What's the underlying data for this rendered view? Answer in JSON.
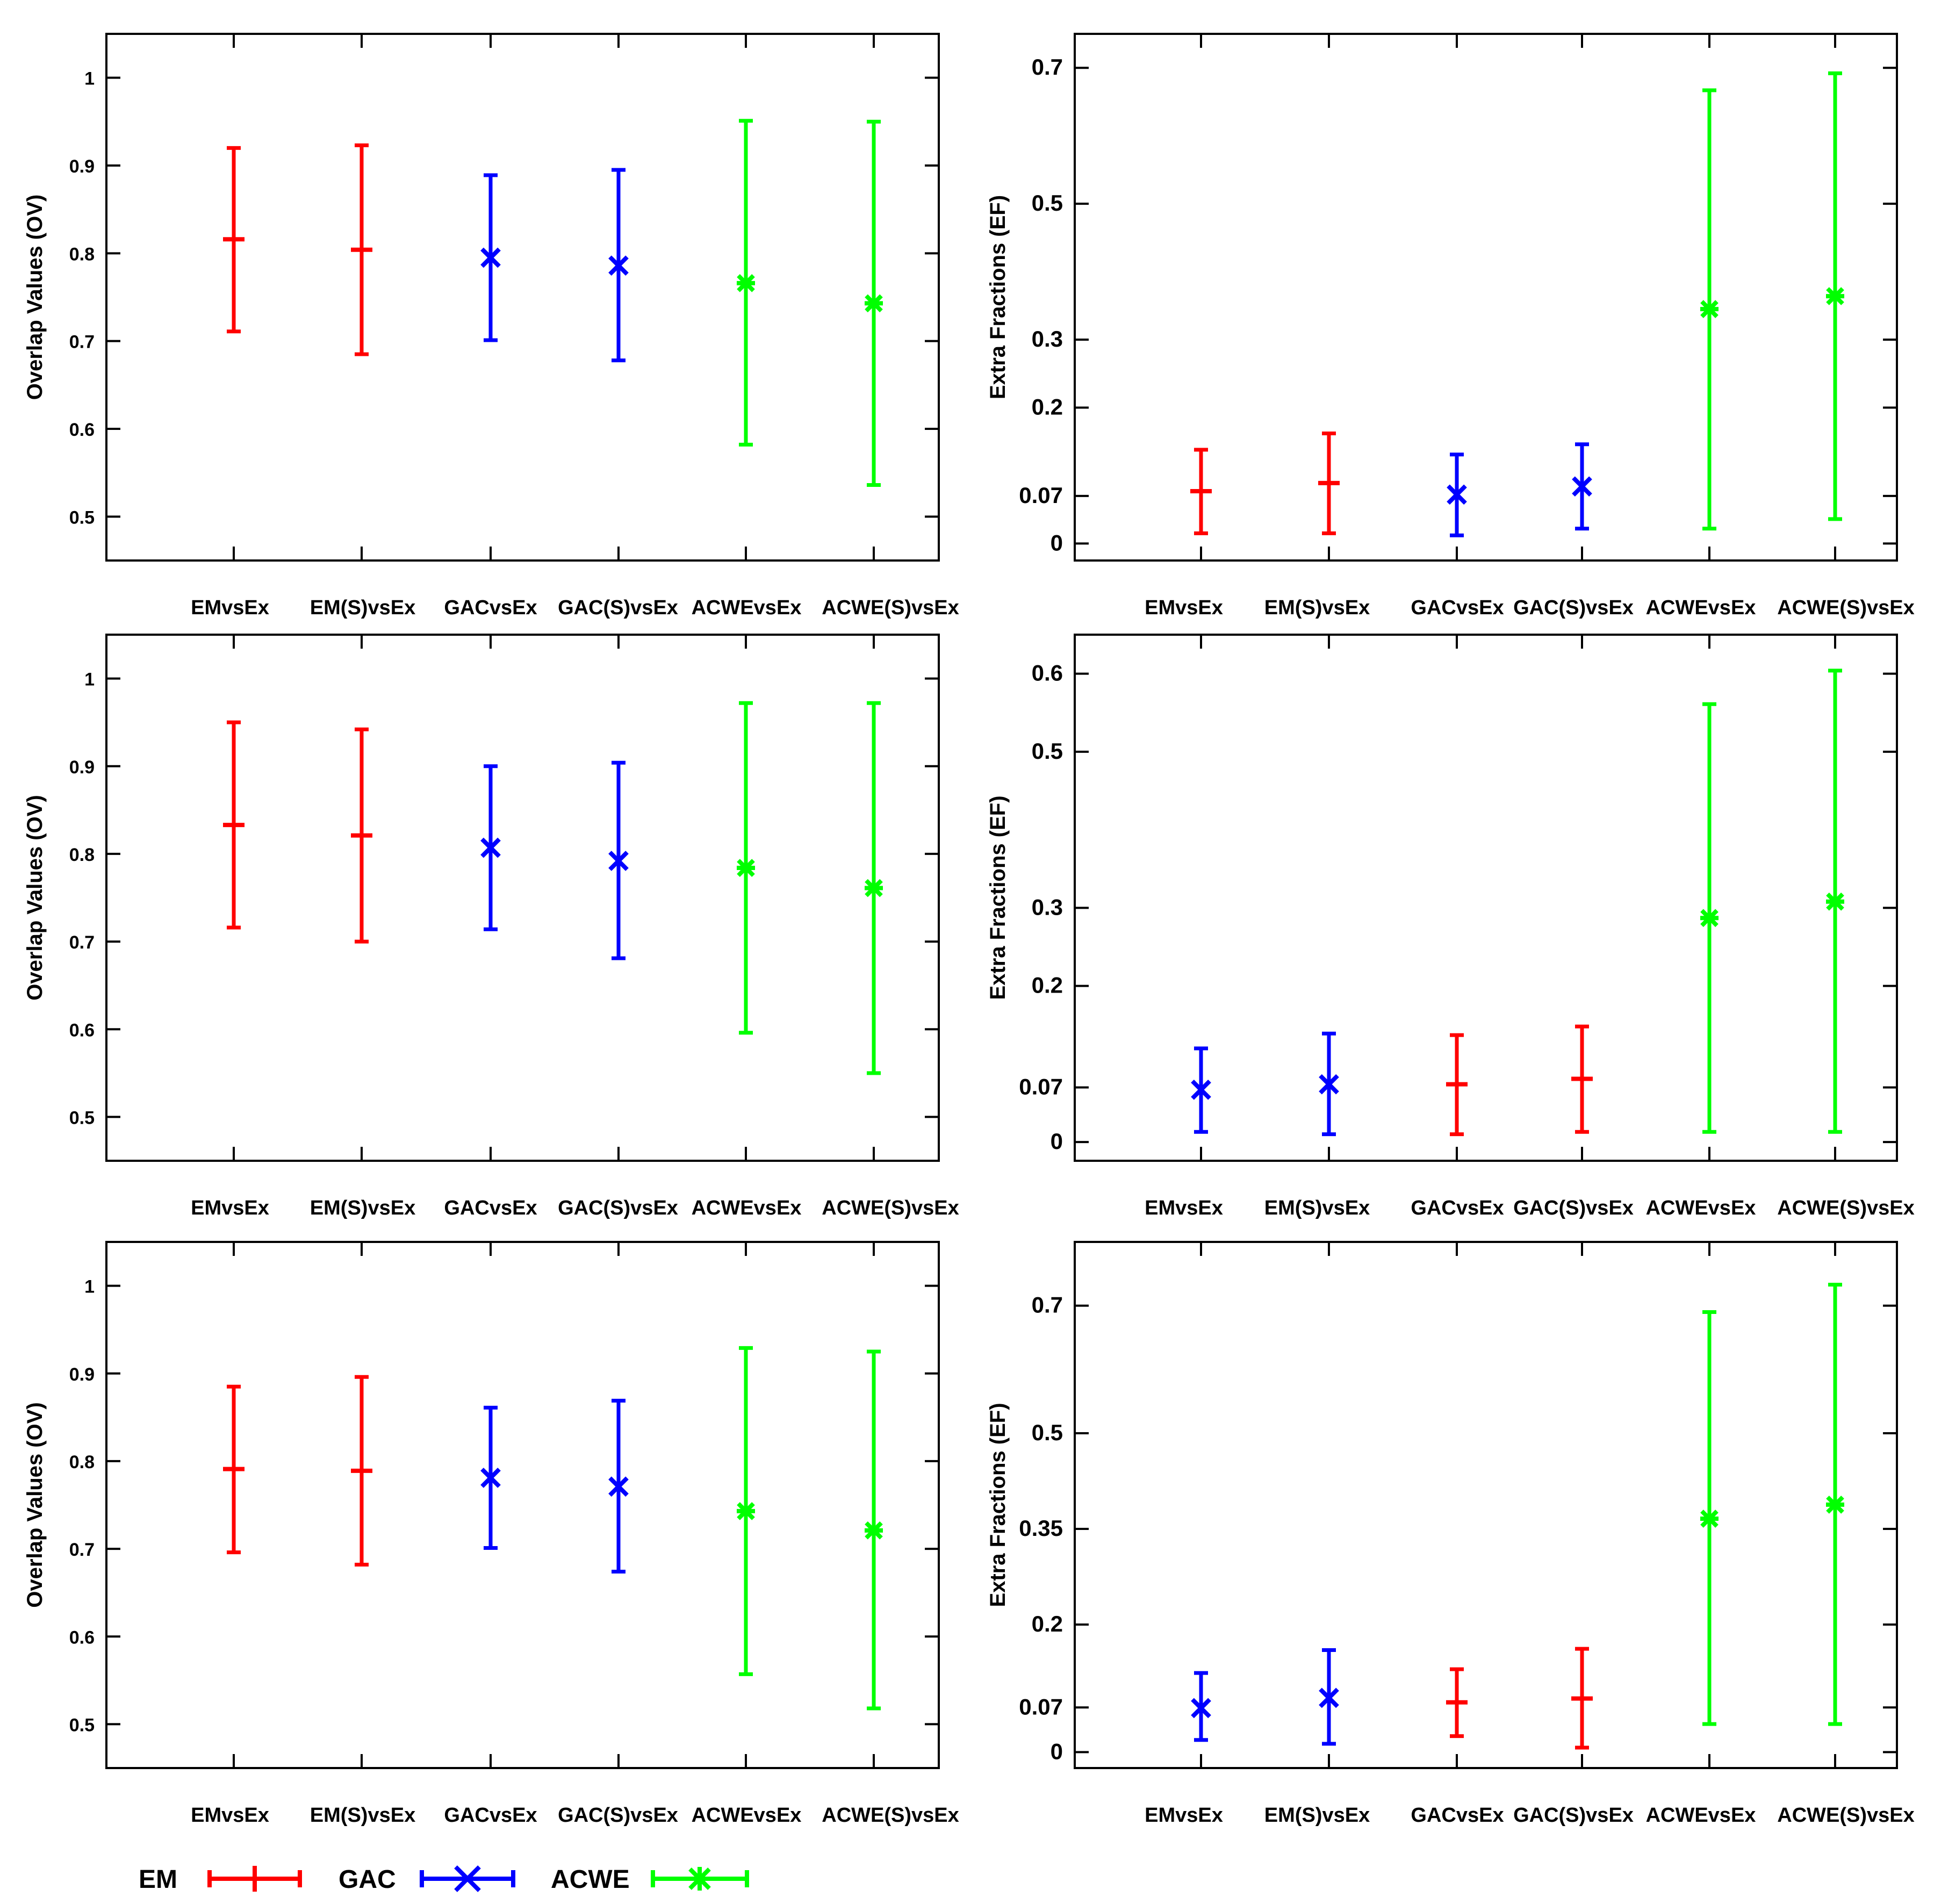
{
  "legend": [
    {
      "label": "EM",
      "series": "EM",
      "marker": "plus",
      "color": "#ff0000"
    },
    {
      "label": "GAC",
      "series": "GAC",
      "marker": "cross",
      "color": "#0000ff"
    },
    {
      "label": "ACWE",
      "series": "ACWE",
      "marker": "star",
      "color": "#00ff00"
    }
  ],
  "chart_data": [
    {
      "type": "errorbar",
      "ylabel": "Overlap Values (OV)",
      "categories": [
        "EMvsEx",
        "EM(S)vsEx",
        "GACvsEx",
        "GAC(S)vsEx",
        "ACWEvsEx",
        "ACWE(S)vsEx"
      ],
      "ylim": [
        0.45,
        1.05
      ],
      "yticks": [
        0.5,
        0.6,
        0.7,
        0.8,
        0.9,
        1
      ],
      "ytick_labels": [
        "0.5",
        "0.6",
        "0.7",
        "0.8",
        "0.9",
        "1"
      ],
      "points": [
        {
          "series": "EM",
          "color": "#ff0000",
          "marker": "plus",
          "mean": 0.816,
          "low": 0.711,
          "high": 0.92
        },
        {
          "series": "EM",
          "color": "#ff0000",
          "marker": "plus",
          "mean": 0.804,
          "low": 0.685,
          "high": 0.923
        },
        {
          "series": "GAC",
          "color": "#0000ff",
          "marker": "cross",
          "mean": 0.795,
          "low": 0.701,
          "high": 0.889
        },
        {
          "series": "GAC",
          "color": "#0000ff",
          "marker": "cross",
          "mean": 0.786,
          "low": 0.678,
          "high": 0.895
        },
        {
          "series": "ACWE",
          "color": "#00ff00",
          "marker": "star",
          "mean": 0.766,
          "low": 0.582,
          "high": 0.951
        },
        {
          "series": "ACWE",
          "color": "#00ff00",
          "marker": "star",
          "mean": 0.743,
          "low": 0.536,
          "high": 0.95
        }
      ]
    },
    {
      "type": "errorbar",
      "ylabel": "Extra Fractions (EF)",
      "categories": [
        "EMvsEx",
        "EM(S)vsEx",
        "GACvsEx",
        "GAC(S)vsEx",
        "ACWEvsEx",
        "ACWE(S)vsEx"
      ],
      "ylim": [
        -0.025,
        0.75
      ],
      "yticks": [
        0,
        0.07,
        0.2,
        0.3,
        0.5,
        0.7
      ],
      "ytick_labels": [
        "0",
        "0.07",
        "0.2",
        "0.3",
        "0.5",
        "0.7"
      ],
      "points": [
        {
          "series": "EM",
          "color": "#ff0000",
          "marker": "plus",
          "mean": 0.077,
          "low": 0.015,
          "high": 0.138
        },
        {
          "series": "EM",
          "color": "#ff0000",
          "marker": "plus",
          "mean": 0.089,
          "low": 0.015,
          "high": 0.162
        },
        {
          "series": "GAC",
          "color": "#0000ff",
          "marker": "cross",
          "mean": 0.072,
          "low": 0.012,
          "high": 0.131
        },
        {
          "series": "GAC",
          "color": "#0000ff",
          "marker": "cross",
          "mean": 0.084,
          "low": 0.022,
          "high": 0.146
        },
        {
          "series": "ACWE",
          "color": "#00ff00",
          "marker": "star",
          "mean": 0.345,
          "low": 0.022,
          "high": 0.667
        },
        {
          "series": "ACWE",
          "color": "#00ff00",
          "marker": "star",
          "mean": 0.364,
          "low": 0.036,
          "high": 0.692
        }
      ]
    },
    {
      "type": "errorbar",
      "ylabel": "Overlap Values (OV)",
      "categories": [
        "EMvsEx",
        "EM(S)vsEx",
        "GACvsEx",
        "GAC(S)vsEx",
        "ACWEvsEx",
        "ACWE(S)vsEx"
      ],
      "ylim": [
        0.45,
        1.05
      ],
      "yticks": [
        0.5,
        0.6,
        0.7,
        0.8,
        0.9,
        1
      ],
      "ytick_labels": [
        "0.5",
        "0.6",
        "0.7",
        "0.8",
        "0.9",
        "1"
      ],
      "points": [
        {
          "series": "EM",
          "color": "#ff0000",
          "marker": "plus",
          "mean": 0.833,
          "low": 0.716,
          "high": 0.95
        },
        {
          "series": "EM",
          "color": "#ff0000",
          "marker": "plus",
          "mean": 0.821,
          "low": 0.7,
          "high": 0.942
        },
        {
          "series": "GAC",
          "color": "#0000ff",
          "marker": "cross",
          "mean": 0.807,
          "low": 0.714,
          "high": 0.9
        },
        {
          "series": "GAC",
          "color": "#0000ff",
          "marker": "cross",
          "mean": 0.792,
          "low": 0.681,
          "high": 0.904
        },
        {
          "series": "ACWE",
          "color": "#00ff00",
          "marker": "star",
          "mean": 0.784,
          "low": 0.596,
          "high": 0.972
        },
        {
          "series": "ACWE",
          "color": "#00ff00",
          "marker": "star",
          "mean": 0.761,
          "low": 0.55,
          "high": 0.972
        }
      ]
    },
    {
      "type": "errorbar",
      "ylabel": "Extra Fractions (EF)",
      "categories": [
        "EMvsEx",
        "EM(S)vsEx",
        "GACvsEx",
        "GAC(S)vsEx",
        "ACWEvsEx",
        "ACWE(S)vsEx"
      ],
      "ylim": [
        -0.024,
        0.65
      ],
      "yticks": [
        0,
        0.07,
        0.2,
        0.3,
        0.5,
        0.6
      ],
      "ytick_labels": [
        "0",
        "0.07",
        "0.2",
        "0.3",
        "0.5",
        "0.6"
      ],
      "points": [
        {
          "series": "GAC",
          "color": "#0000ff",
          "marker": "cross",
          "mean": 0.067,
          "low": 0.013,
          "high": 0.12
        },
        {
          "series": "GAC",
          "color": "#0000ff",
          "marker": "cross",
          "mean": 0.074,
          "low": 0.01,
          "high": 0.139
        },
        {
          "series": "EM",
          "color": "#ff0000",
          "marker": "plus",
          "mean": 0.074,
          "low": 0.01,
          "high": 0.137
        },
        {
          "series": "EM",
          "color": "#ff0000",
          "marker": "plus",
          "mean": 0.081,
          "low": 0.013,
          "high": 0.148
        },
        {
          "series": "ACWE",
          "color": "#00ff00",
          "marker": "star",
          "mean": 0.287,
          "low": 0.013,
          "high": 0.561
        },
        {
          "series": "ACWE",
          "color": "#00ff00",
          "marker": "star",
          "mean": 0.308,
          "low": 0.013,
          "high": 0.604
        }
      ]
    },
    {
      "type": "errorbar",
      "ylabel": "Overlap Values (OV)",
      "categories": [
        "EMvsEx",
        "EM(S)vsEx",
        "GACvsEx",
        "GAC(S)vsEx",
        "ACWEvsEx",
        "ACWE(S)vsEx"
      ],
      "ylim": [
        0.45,
        1.05
      ],
      "yticks": [
        0.5,
        0.6,
        0.7,
        0.8,
        0.9,
        1
      ],
      "ytick_labels": [
        "0.5",
        "0.6",
        "0.7",
        "0.8",
        "0.9",
        "1"
      ],
      "points": [
        {
          "series": "EM",
          "color": "#ff0000",
          "marker": "plus",
          "mean": 0.791,
          "low": 0.696,
          "high": 0.885
        },
        {
          "series": "EM",
          "color": "#ff0000",
          "marker": "plus",
          "mean": 0.789,
          "low": 0.682,
          "high": 0.896
        },
        {
          "series": "GAC",
          "color": "#0000ff",
          "marker": "cross",
          "mean": 0.781,
          "low": 0.701,
          "high": 0.861
        },
        {
          "series": "GAC",
          "color": "#0000ff",
          "marker": "cross",
          "mean": 0.771,
          "low": 0.674,
          "high": 0.869
        },
        {
          "series": "ACWE",
          "color": "#00ff00",
          "marker": "star",
          "mean": 0.743,
          "low": 0.557,
          "high": 0.929
        },
        {
          "series": "ACWE",
          "color": "#00ff00",
          "marker": "star",
          "mean": 0.721,
          "low": 0.518,
          "high": 0.925
        }
      ]
    },
    {
      "type": "errorbar",
      "ylabel": "Extra Fractions (EF)",
      "categories": [
        "EMvsEx",
        "EM(S)vsEx",
        "GACvsEx",
        "GAC(S)vsEx",
        "ACWEvsEx",
        "ACWE(S)vsEx"
      ],
      "ylim": [
        -0.025,
        0.8
      ],
      "yticks": [
        0,
        0.07,
        0.2,
        0.35,
        0.5,
        0.7
      ],
      "ytick_labels": [
        "0",
        "0.07",
        "0.2",
        "0.35",
        "0.5",
        "0.7"
      ],
      "points": [
        {
          "series": "GAC",
          "color": "#0000ff",
          "marker": "cross",
          "mean": 0.069,
          "low": 0.019,
          "high": 0.124
        },
        {
          "series": "GAC",
          "color": "#0000ff",
          "marker": "cross",
          "mean": 0.085,
          "low": 0.013,
          "high": 0.16
        },
        {
          "series": "EM",
          "color": "#ff0000",
          "marker": "plus",
          "mean": 0.078,
          "low": 0.025,
          "high": 0.13
        },
        {
          "series": "EM",
          "color": "#ff0000",
          "marker": "plus",
          "mean": 0.084,
          "low": 0.007,
          "high": 0.162
        },
        {
          "series": "ACWE",
          "color": "#00ff00",
          "marker": "star",
          "mean": 0.366,
          "low": 0.044,
          "high": 0.69
        },
        {
          "series": "ACWE",
          "color": "#00ff00",
          "marker": "star",
          "mean": 0.388,
          "low": 0.044,
          "high": 0.733
        }
      ]
    }
  ]
}
